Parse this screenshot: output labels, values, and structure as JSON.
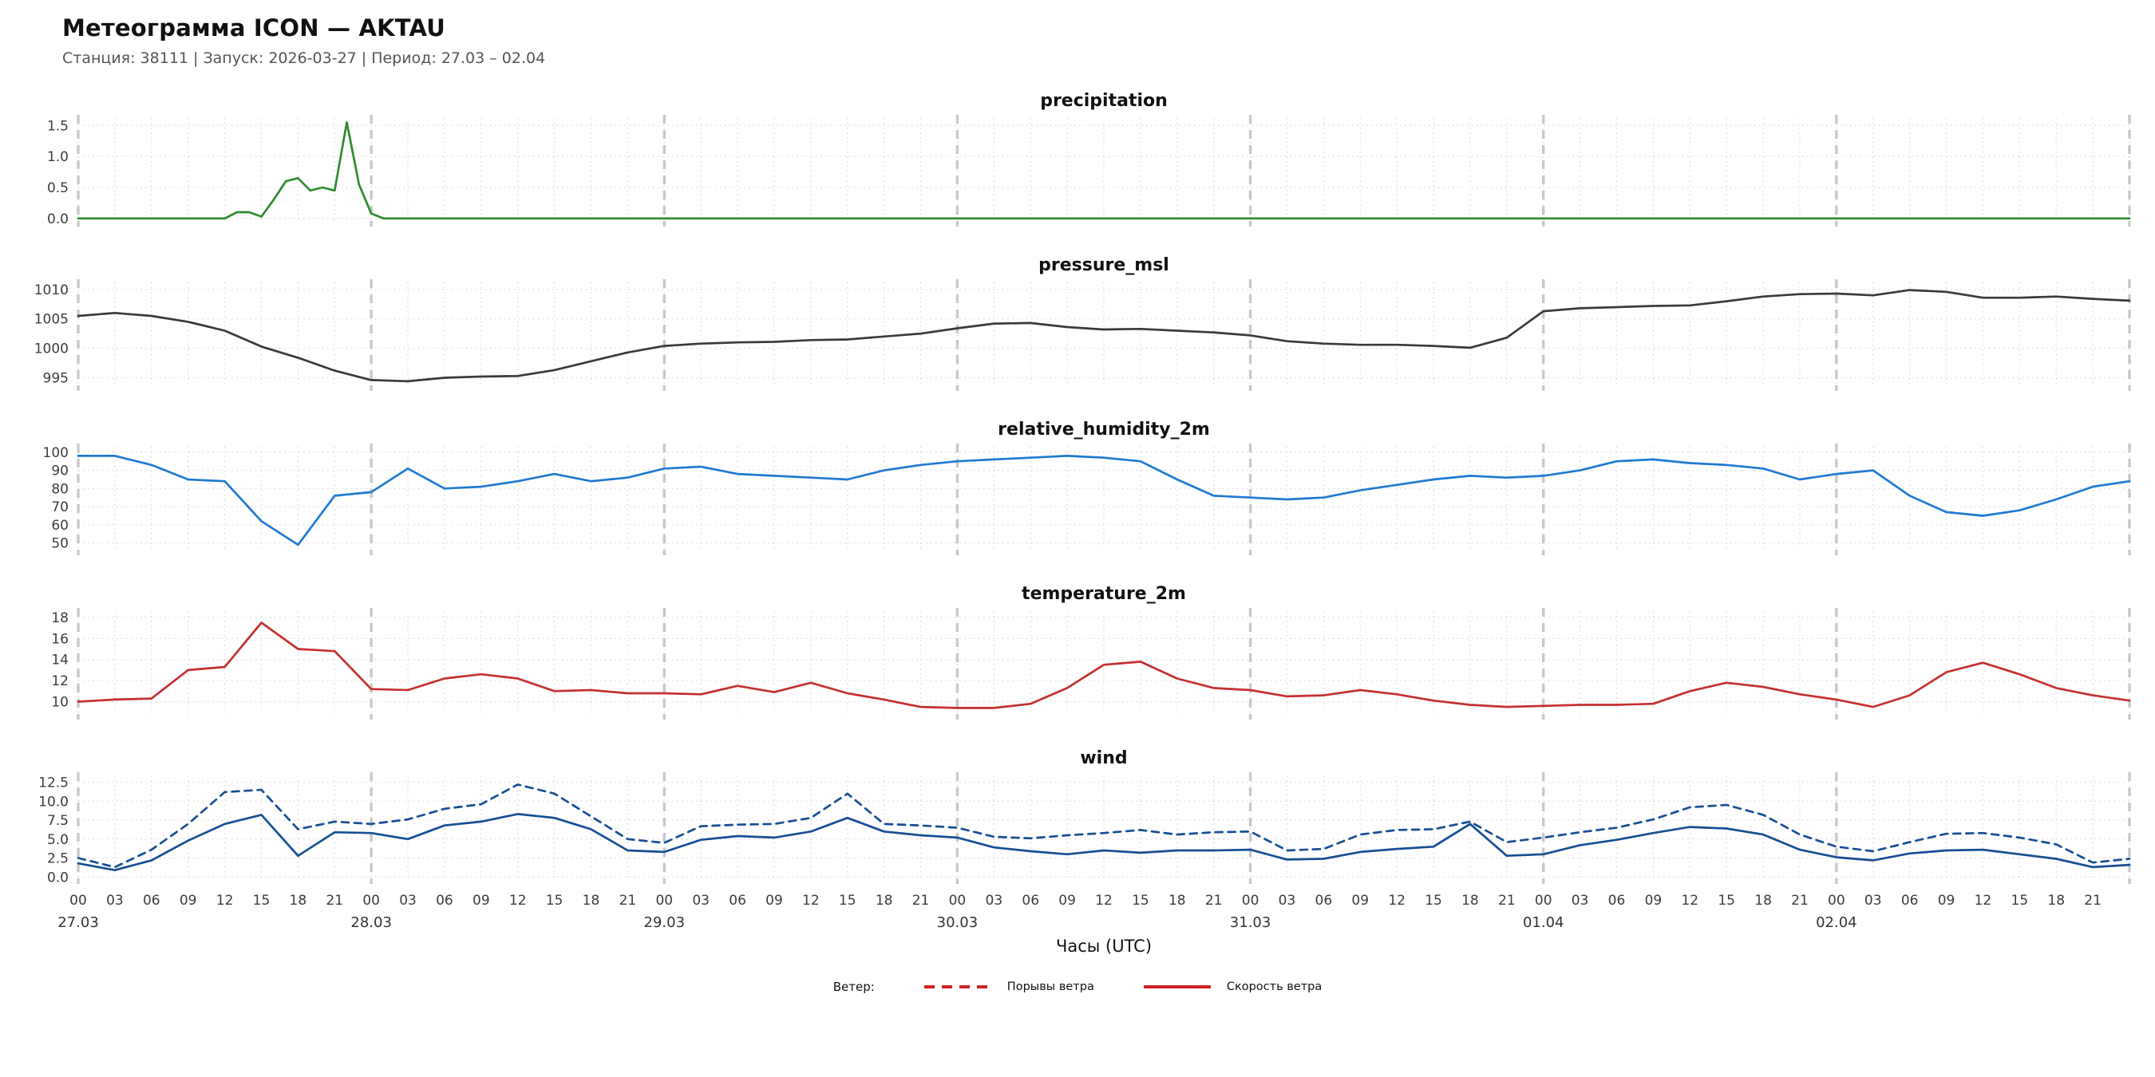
{
  "header": {
    "title": "Метеограмма ICON — AKTAU",
    "subtitle": "Станция: 38111  | Запуск: 2026-03-27  | Период: 27.03 – 02.04"
  },
  "x_axis": {
    "xlabel": "Часы (UTC)",
    "xlim": [
      0,
      168
    ],
    "step_hours": 3,
    "hour_labels": [
      "00",
      "03",
      "06",
      "09",
      "12",
      "15",
      "18",
      "21"
    ],
    "days": [
      "27.03",
      "28.03",
      "29.03",
      "30.03",
      "31.03",
      "01.04",
      "02.04"
    ]
  },
  "chart_data": [
    {
      "type": "line",
      "title": "precipitation",
      "color": "#2e8b2e",
      "ylim": [
        -0.08,
        1.62
      ],
      "yticks": [
        0,
        0.5,
        1.0,
        1.5
      ],
      "ytick_labels": [
        "0.0",
        "0.5",
        "1.0",
        "1.5"
      ],
      "series": [
        {
          "name": "precipitation",
          "style": "solid",
          "step": 1,
          "extend": true,
          "values": [
            0,
            0,
            0,
            0,
            0,
            0,
            0,
            0,
            0,
            0,
            0,
            0,
            0,
            0.1,
            0.1,
            0.03,
            0.3,
            0.6,
            0.65,
            0.45,
            0.5,
            0.45,
            1.55,
            0.55,
            0.08,
            0,
            0
          ]
        }
      ]
    },
    {
      "type": "line",
      "title": "pressure_msl",
      "color": "#3a3a3a",
      "ylim": [
        993.3,
        1011.2
      ],
      "yticks": [
        995,
        1000,
        1005,
        1010
      ],
      "ytick_labels": [
        "995",
        "1000",
        "1005",
        "1010"
      ],
      "series": [
        {
          "name": "pressure_msl",
          "style": "solid",
          "step": 3,
          "extend": false,
          "values": [
            1005.5,
            1006.0,
            1005.5,
            1004.5,
            1003.0,
            1000.3,
            998.4,
            996.2,
            994.6,
            994.4,
            995.0,
            995.2,
            995.3,
            996.3,
            997.8,
            999.3,
            1000.4,
            1000.8,
            1001.0,
            1001.1,
            1001.4,
            1001.5,
            1002.0,
            1002.5,
            1003.4,
            1004.2,
            1004.3,
            1003.6,
            1003.2,
            1003.3,
            1003.0,
            1002.7,
            1002.2,
            1001.2,
            1000.8,
            1000.6,
            1000.6,
            1000.4,
            1000.1,
            1001.8,
            1006.3,
            1006.8,
            1007.0,
            1007.2,
            1007.3,
            1008.0,
            1008.8,
            1009.2,
            1009.3,
            1009.0,
            1009.9,
            1009.6,
            1008.6,
            1008.6,
            1008.8,
            1008.4,
            1008.1
          ]
        }
      ]
    },
    {
      "type": "line",
      "title": "relative_humidity_2m",
      "color": "#1f7ad4",
      "ylim": [
        45,
        103
      ],
      "yticks": [
        50,
        60,
        70,
        80,
        90,
        100
      ],
      "ytick_labels": [
        "50",
        "60",
        "70",
        "80",
        "90",
        "100"
      ],
      "series": [
        {
          "name": "relative_humidity_2m",
          "style": "solid",
          "step": 3,
          "extend": false,
          "values": [
            98,
            98,
            93,
            85,
            84,
            62,
            49,
            76,
            78,
            91,
            80,
            81,
            84,
            88,
            84,
            86,
            91,
            92,
            88,
            87,
            86,
            85,
            90,
            93,
            95,
            96,
            97,
            98,
            97,
            95,
            85,
            76,
            75,
            74,
            75,
            79,
            82,
            85,
            87,
            86,
            87,
            90,
            95,
            96,
            94,
            93,
            91,
            85,
            88,
            90,
            76,
            67,
            65,
            68,
            74,
            81,
            84
          ]
        }
      ]
    },
    {
      "type": "line",
      "title": "temperature_2m",
      "color": "#c62f2f",
      "ylim": [
        8.6,
        18.6
      ],
      "yticks": [
        10,
        12,
        14,
        16,
        18
      ],
      "ytick_labels": [
        "10",
        "12",
        "14",
        "16",
        "18"
      ],
      "series": [
        {
          "name": "temperature_2m",
          "style": "solid",
          "step": 3,
          "extend": false,
          "values": [
            10.0,
            10.2,
            10.3,
            13.0,
            13.3,
            17.5,
            15.0,
            14.8,
            11.2,
            11.1,
            12.2,
            12.6,
            12.2,
            11.0,
            11.1,
            10.8,
            10.8,
            10.7,
            11.5,
            10.9,
            11.8,
            10.8,
            10.2,
            9.5,
            9.4,
            9.4,
            9.8,
            11.3,
            13.5,
            13.8,
            12.2,
            11.3,
            11.1,
            10.5,
            10.6,
            11.1,
            10.7,
            10.1,
            9.7,
            9.5,
            9.6,
            9.7,
            9.7,
            9.8,
            11.0,
            11.8,
            11.4,
            10.7,
            10.2,
            9.5,
            10.6,
            12.8,
            13.7,
            12.6,
            11.3,
            10.6,
            10.1
          ]
        }
      ]
    },
    {
      "type": "line",
      "title": "wind",
      "color": "#164f94",
      "ylim": [
        -0.5,
        13.4
      ],
      "yticks": [
        0,
        2.5,
        5,
        7.5,
        10,
        12.5
      ],
      "ytick_labels": [
        "0.0",
        "2.5",
        "5.0",
        "7.5",
        "10.0",
        "12.5"
      ],
      "series": [
        {
          "name": "wind_gusts",
          "style": "dashed",
          "step": 3,
          "extend": false,
          "values": [
            2.5,
            1.3,
            3.6,
            7.0,
            11.2,
            11.5,
            6.3,
            7.3,
            7.0,
            7.6,
            9.0,
            9.6,
            12.2,
            11.0,
            8.0,
            5.0,
            4.5,
            6.7,
            6.9,
            7.0,
            7.8,
            11.0,
            7.0,
            6.8,
            6.5,
            5.3,
            5.1,
            5.5,
            5.8,
            6.2,
            5.6,
            5.9,
            6.0,
            3.5,
            3.7,
            5.6,
            6.2,
            6.3,
            7.3,
            4.6,
            5.2,
            5.9,
            6.5,
            7.6,
            9.2,
            9.5,
            8.2,
            5.6,
            4.0,
            3.4,
            4.6,
            5.7,
            5.8,
            5.2,
            4.3,
            1.9,
            2.4
          ]
        },
        {
          "name": "wind_speed",
          "style": "solid",
          "step": 3,
          "extend": false,
          "values": [
            1.8,
            0.9,
            2.2,
            4.8,
            7.0,
            8.2,
            2.8,
            5.9,
            5.8,
            5.0,
            6.8,
            7.3,
            8.3,
            7.8,
            6.3,
            3.5,
            3.3,
            4.9,
            5.4,
            5.2,
            6.0,
            7.8,
            6.0,
            5.5,
            5.2,
            3.9,
            3.4,
            3.0,
            3.5,
            3.2,
            3.5,
            3.5,
            3.6,
            2.3,
            2.4,
            3.3,
            3.7,
            4.0,
            7.0,
            2.8,
            3.0,
            4.2,
            4.9,
            5.8,
            6.6,
            6.4,
            5.6,
            3.6,
            2.6,
            2.2,
            3.1,
            3.5,
            3.6,
            3.0,
            2.4,
            1.3,
            1.6
          ]
        }
      ]
    }
  ],
  "legend": {
    "label": "Ветер:",
    "items": [
      {
        "label": "Порывы ветра",
        "style": "dashed",
        "color": "#cc2222"
      },
      {
        "label": "Скорость ветра",
        "style": "solid",
        "color": "#cc2222"
      }
    ]
  },
  "style_colors": {
    "grid": "#d9d9d9",
    "day_boundary": "#c8c8c8",
    "tick_text": "#3c3c3c"
  }
}
